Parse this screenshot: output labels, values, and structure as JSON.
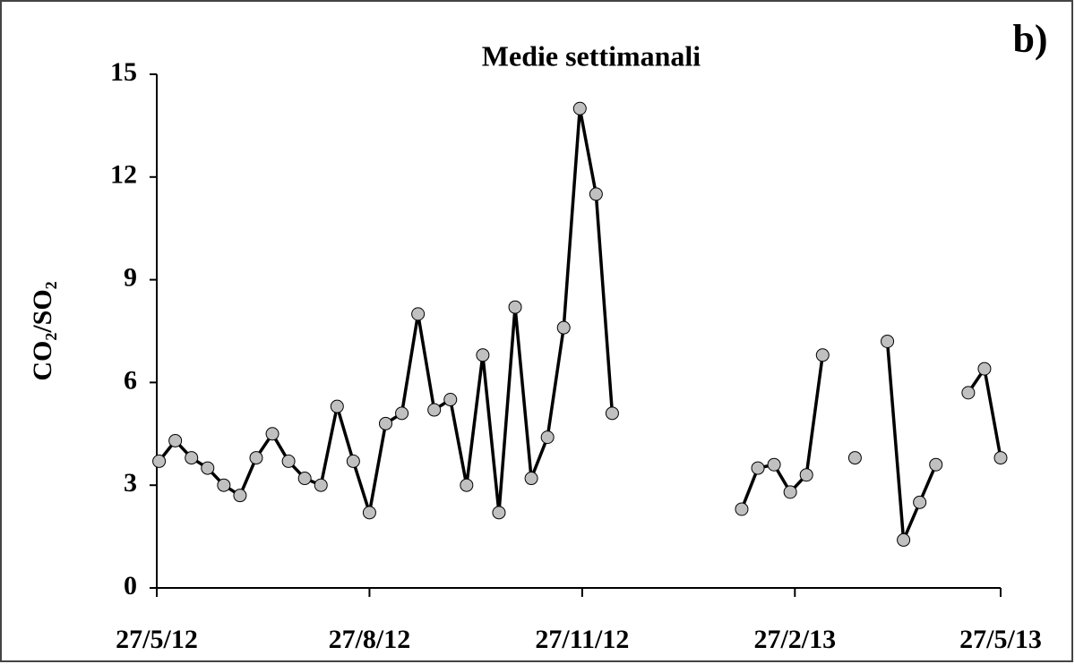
{
  "chart_data": {
    "type": "line",
    "title": "Medie settimanali",
    "panel_label": "b)",
    "y_label": "CO₂/SO₂",
    "x": [
      "2012-05-28",
      "2012-06-04",
      "2012-06-11",
      "2012-06-18",
      "2012-06-25",
      "2012-07-02",
      "2012-07-09",
      "2012-07-16",
      "2012-07-23",
      "2012-07-30",
      "2012-08-06",
      "2012-08-13",
      "2012-08-20",
      "2012-08-27",
      "2012-09-03",
      "2012-09-10",
      "2012-09-17",
      "2012-09-24",
      "2012-10-01",
      "2012-10-08",
      "2012-10-15",
      "2012-10-22",
      "2012-10-29",
      "2012-11-05",
      "2012-11-12",
      "2012-11-19",
      "2012-11-26",
      "2012-12-03",
      "2012-12-10",
      "2012-12-17",
      "2013-02-04",
      "2013-02-11",
      "2013-02-18",
      "2013-02-25",
      "2013-03-04",
      "2013-03-11",
      "2013-03-18",
      "2013-03-25",
      "2013-04-01",
      "2013-04-08",
      "2013-04-15",
      "2013-04-22",
      "2013-04-29",
      "2013-05-06",
      "2013-05-13",
      "2013-05-20",
      "2013-05-27"
    ],
    "series": [
      {
        "name": "CO₂/SO₂",
        "color": "#000000",
        "marker_color": "#c0c0c0",
        "values": [
          3.7,
          4.3,
          3.8,
          3.5,
          3.0,
          2.7,
          3.8,
          4.5,
          3.7,
          3.2,
          3.0,
          5.3,
          3.7,
          2.2,
          4.8,
          5.1,
          8.0,
          5.2,
          5.5,
          3.0,
          6.8,
          2.2,
          8.2,
          3.2,
          4.4,
          7.6,
          14.0,
          11.5,
          5.1,
          null,
          2.3,
          3.5,
          3.6,
          2.8,
          3.3,
          6.8,
          null,
          3.8,
          null,
          7.2,
          1.4,
          2.5,
          3.6,
          null,
          5.7,
          6.4,
          3.8
        ]
      }
    ],
    "xlim": [
      "2012-05-27",
      "2013-05-27"
    ],
    "xticks": [
      {
        "value": "2012-05-27",
        "label": "27/5/12"
      },
      {
        "value": "2012-08-27",
        "label": "27/8/12"
      },
      {
        "value": "2012-11-27",
        "label": "27/11/12"
      },
      {
        "value": "2013-02-27",
        "label": "27/2/13"
      },
      {
        "value": "2013-05-27",
        "label": "27/5/13"
      }
    ],
    "ylim": [
      0,
      15
    ],
    "yticks": [
      0,
      3,
      6,
      9,
      12,
      15
    ],
    "grid": false
  }
}
